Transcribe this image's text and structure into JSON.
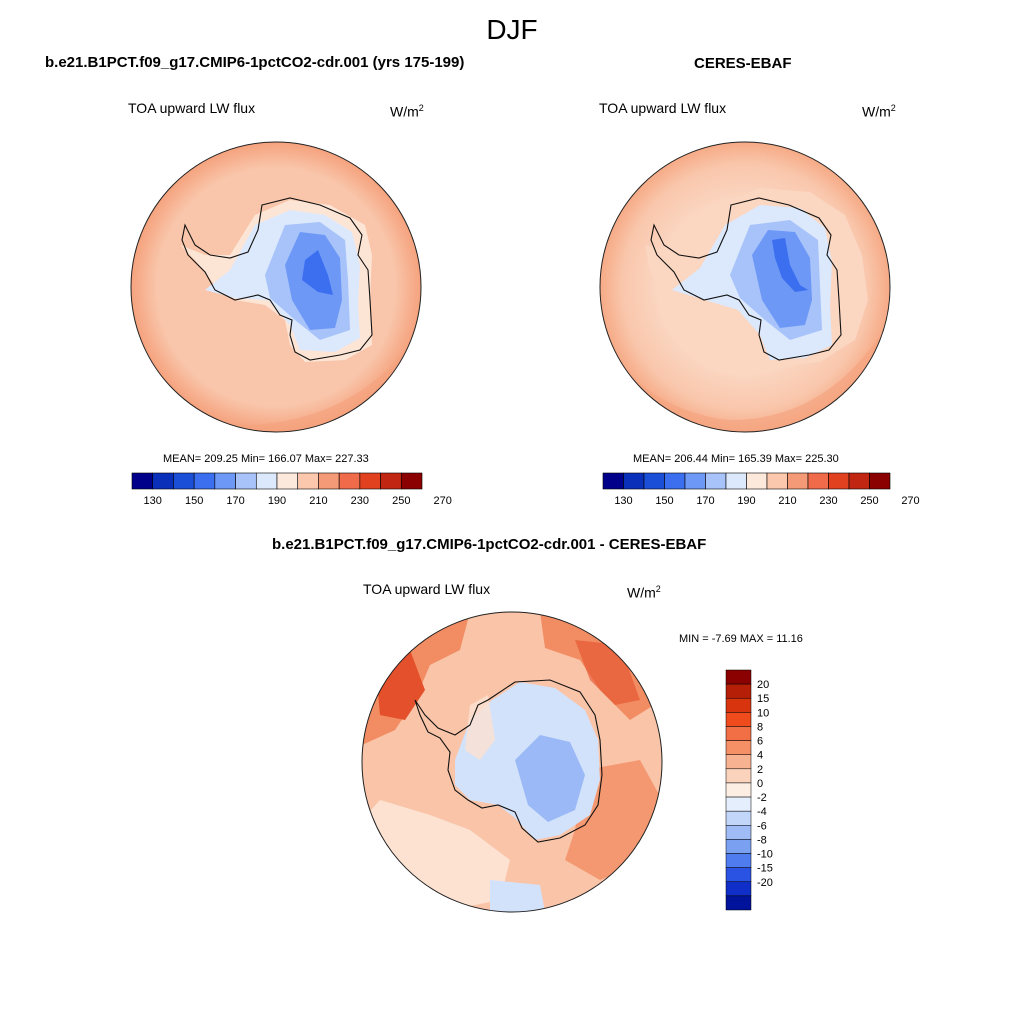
{
  "title": "DJF",
  "panels": [
    {
      "title": "b.e21.B1PCT.f09_g17.CMIP6-1pctCO2-cdr.001 (yrs 175-199)",
      "variable": "TOA upward LW flux",
      "units_base": "W/m",
      "units_sup": "2",
      "stats": "MEAN= 209.25  Min= 166.07  Max= 227.33"
    },
    {
      "title": "CERES-EBAF",
      "variable": "TOA upward LW flux",
      "units_base": "W/m",
      "units_sup": "2",
      "stats": "MEAN= 206.44  Min= 165.39  Max= 225.30"
    },
    {
      "title": "b.e21.B1PCT.f09_g17.CMIP6-1pctCO2-cdr.001 - CERES-EBAF",
      "variable": "TOA upward LW flux",
      "units_base": "W/m",
      "units_sup": "2",
      "stats": "MIN =  -7.69 MAX =  11.16"
    }
  ],
  "colorbar_abs": {
    "ticks": [
      "130",
      "150",
      "170",
      "190",
      "210",
      "230",
      "250",
      "270"
    ],
    "colors": [
      "#00008b",
      "#0a2fb8",
      "#1c4fd8",
      "#3b6ff0",
      "#6d98f6",
      "#a7c3fa",
      "#dce9fc",
      "#fde8dc",
      "#fbc8ad",
      "#f59a76",
      "#ef6b4a",
      "#e2411f",
      "#c12612",
      "#8b0000"
    ]
  },
  "colorbar_diff": {
    "labels": [
      "20",
      "15",
      "10",
      "8",
      "6",
      "4",
      "2",
      "0",
      "-2",
      "-4",
      "-6",
      "-8",
      "-10",
      "-15",
      "-20"
    ],
    "colors": [
      "#8b0000",
      "#b51f08",
      "#d8350f",
      "#f04b1c",
      "#f26f46",
      "#f48f66",
      "#f7b292",
      "#fbd3bd",
      "#fdeee4",
      "#e4eefc",
      "#c2d6fa",
      "#9fbcf6",
      "#7aa0f2",
      "#4f7df0",
      "#2a52e3",
      "#0f2fc8",
      "#00139a"
    ]
  },
  "map_colors": {
    "ocean_model": "#f9c6ab",
    "ocean_model_outer": "#f5a27d",
    "ice_edge": "#fde5d6",
    "ant_light": "#dce9fc",
    "ant_mid": "#a7c3fa",
    "ant_deep": "#6d98f6",
    "ant_core": "#3b6ff0",
    "diff_base": "#f9c4a8",
    "diff_warm": "#f28d63",
    "diff_hot": "#e4502b",
    "diff_cool": "#d3e2fb",
    "diff_cold": "#8fb1f4"
  }
}
